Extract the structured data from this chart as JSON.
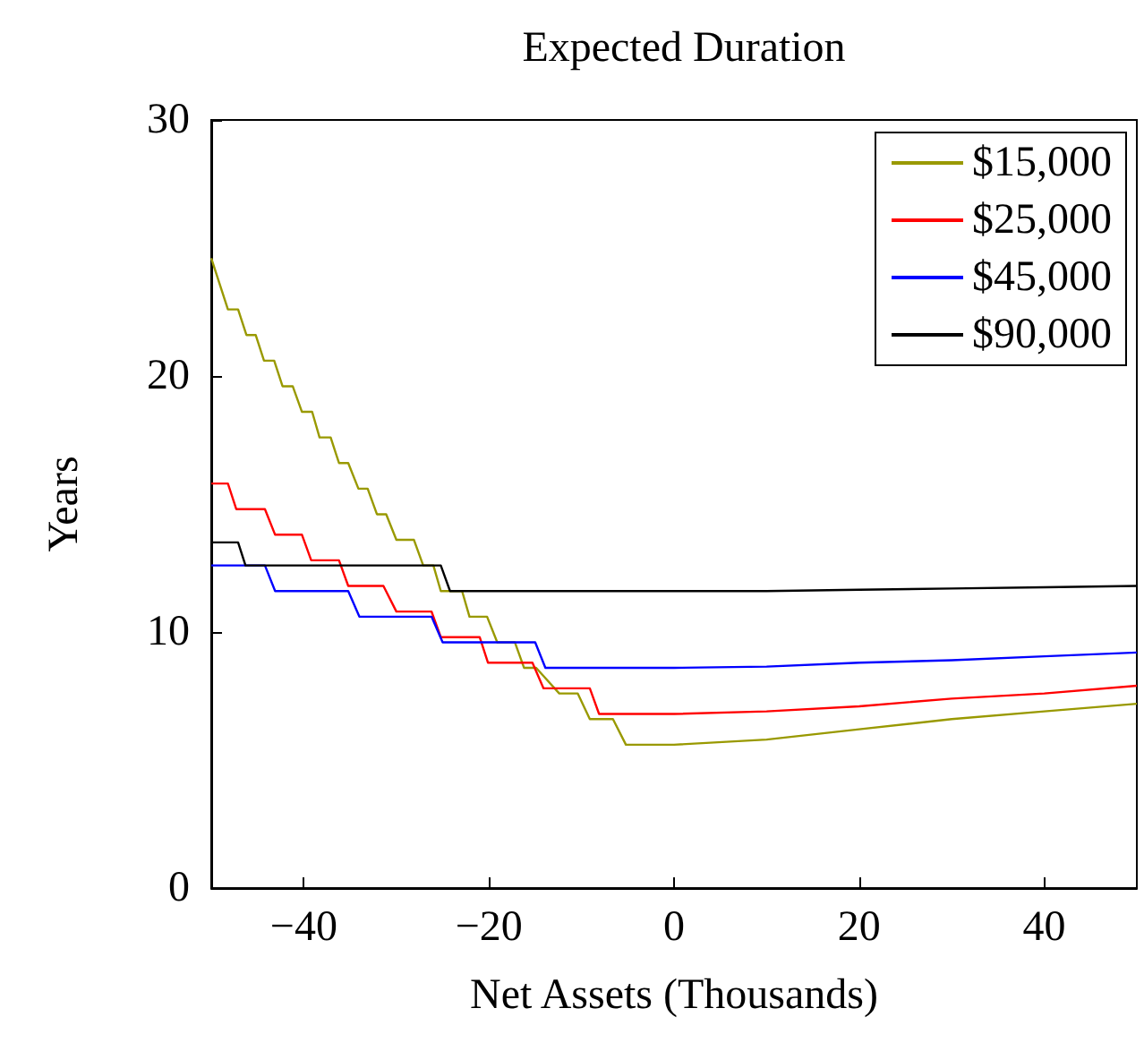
{
  "chart_data": {
    "type": "line",
    "title": "Expected Duration",
    "xlabel": "Net Assets (Thousands)",
    "ylabel": "Years",
    "xlim": [
      -50,
      50
    ],
    "xticks": [
      {
        "value": -40,
        "label": "−40"
      },
      {
        "value": -20,
        "label": "−20"
      },
      0,
      20,
      40
    ],
    "ylim": [
      0,
      30
    ],
    "yticks": [
      0,
      10,
      20,
      30
    ],
    "grid": false,
    "legend": "top right",
    "marker": "none",
    "line_style": "solid",
    "series": [
      {
        "name": "$15,000",
        "color": "#999900",
        "x": [
          -50,
          -48.2,
          -47.1,
          -46.2,
          -45.2,
          -44.3,
          -43.2,
          -42.3,
          -41.2,
          -40.2,
          -39.1,
          -38.3,
          -37.1,
          -36.2,
          -35.2,
          -34.1,
          -33.1,
          -32.1,
          -31.1,
          -30,
          -28.1,
          -27.1,
          -26,
          -25.2,
          -22.9,
          -22.1,
          -20.2,
          -19.1,
          -17.2,
          -16.2,
          -14.9,
          -12.4,
          -10.4,
          -9.1,
          -6.6,
          -5.2,
          0,
          10,
          20,
          30,
          40,
          50
        ],
        "values": [
          24.6,
          22.6,
          22.6,
          21.6,
          21.6,
          20.6,
          20.6,
          19.6,
          19.6,
          18.6,
          18.6,
          17.6,
          17.6,
          16.6,
          16.6,
          15.6,
          15.6,
          14.6,
          14.6,
          13.6,
          13.6,
          12.6,
          12.6,
          11.6,
          11.6,
          10.6,
          10.6,
          9.6,
          9.6,
          8.6,
          8.6,
          7.6,
          7.6,
          6.6,
          6.6,
          5.6,
          5.6,
          5.8,
          6.2,
          6.6,
          6.9,
          7.2
        ]
      },
      {
        "name": "$25,000",
        "color": "#ff0000",
        "x": [
          -50,
          -48.2,
          -47.3,
          -44.2,
          -43.1,
          -40.2,
          -39.2,
          -36.2,
          -35.2,
          -31.4,
          -30,
          -26.2,
          -25.2,
          -21,
          -20.1,
          -15.3,
          -14.1,
          -9.1,
          -8.1,
          0,
          10,
          20,
          30,
          40,
          50
        ],
        "values": [
          15.8,
          15.8,
          14.8,
          14.8,
          13.8,
          13.8,
          12.8,
          12.8,
          11.8,
          11.8,
          10.8,
          10.8,
          9.8,
          9.8,
          8.8,
          8.8,
          7.8,
          7.8,
          6.8,
          6.8,
          6.9,
          7.1,
          7.4,
          7.6,
          7.9
        ]
      },
      {
        "name": "$45,000",
        "color": "#0000ff",
        "x": [
          -50,
          -44.2,
          -43.1,
          -35.2,
          -34,
          -26.2,
          -25,
          -15,
          -13.9,
          0,
          10,
          20,
          30,
          40,
          50
        ],
        "values": [
          12.6,
          12.6,
          11.6,
          11.6,
          10.6,
          10.6,
          9.6,
          9.6,
          8.6,
          8.6,
          8.65,
          8.8,
          8.9,
          9.05,
          9.2
        ]
      },
      {
        "name": "$90,000",
        "color": "#000000",
        "x": [
          -50,
          -47.1,
          -46.3,
          -25.2,
          -24.2,
          0,
          10,
          20,
          30,
          40,
          50
        ],
        "values": [
          13.5,
          13.5,
          12.6,
          12.6,
          11.6,
          11.6,
          11.6,
          11.65,
          11.7,
          11.75,
          11.8
        ]
      }
    ]
  }
}
